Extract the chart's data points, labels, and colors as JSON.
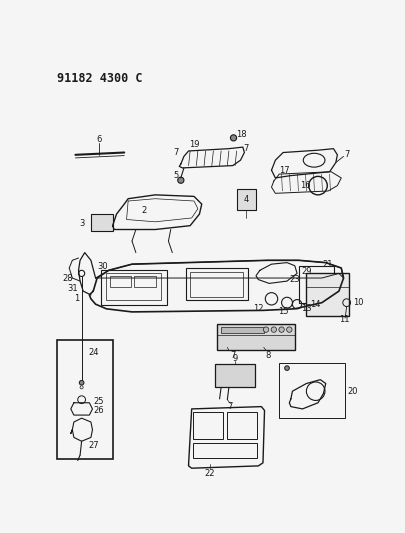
{
  "title": "91182 4300 C",
  "bg_color": "#f5f5f5",
  "line_color": "#1a1a1a",
  "fig_width": 4.05,
  "fig_height": 5.33,
  "dpi": 100,
  "title_fontsize": 8.5,
  "label_fontsize": 6.0
}
